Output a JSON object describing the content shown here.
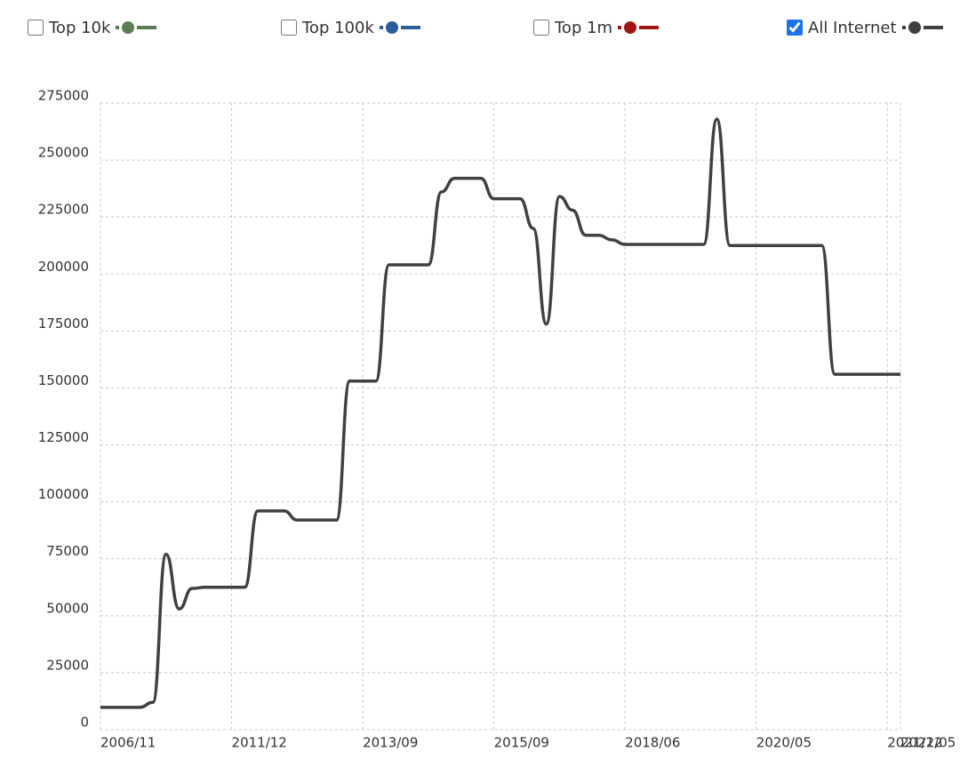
{
  "chart_data": {
    "type": "line",
    "categories": [
      "2006/11",
      null,
      null,
      null,
      null,
      null,
      null,
      null,
      null,
      null,
      "2011/12",
      null,
      null,
      null,
      null,
      null,
      null,
      null,
      null,
      null,
      "2013/09",
      null,
      null,
      null,
      null,
      null,
      null,
      null,
      null,
      null,
      "2015/09",
      null,
      null,
      null,
      null,
      null,
      null,
      null,
      null,
      null,
      "2018/06",
      null,
      null,
      null,
      null,
      null,
      null,
      null,
      null,
      null,
      "2020/05",
      null,
      null,
      null,
      null,
      null,
      null,
      null,
      null,
      null,
      "2021/12",
      "2022/05"
    ],
    "series": [
      {
        "name": "Top 10k",
        "color": "#5a7d54",
        "checked": false
      },
      {
        "name": "Top 100k",
        "color": "#2b5f9a",
        "checked": false
      },
      {
        "name": "Top 1m",
        "color": "#a31515",
        "checked": false
      },
      {
        "name": "All Internet",
        "color": "#404040",
        "checked": true,
        "values": [
          9800,
          9800,
          9800,
          9800,
          12000,
          77000,
          53000,
          62000,
          62500,
          62500,
          62500,
          62500,
          96000,
          96000,
          96000,
          92000,
          92000,
          92000,
          92000,
          153000,
          153000,
          153000,
          204000,
          204000,
          204000,
          204000,
          236000,
          242000,
          242000,
          242000,
          233000,
          233000,
          233000,
          220000,
          178000,
          234000,
          228000,
          217000,
          217000,
          215000,
          213000,
          213000,
          213000,
          213000,
          213000,
          213000,
          213000,
          268000,
          212500,
          212500,
          212500,
          212500,
          212500,
          212500,
          212500,
          212500,
          156000,
          156000,
          156000,
          156000,
          156000,
          156000
        ]
      }
    ],
    "ylim": [
      0,
      275000
    ],
    "yticks": [
      0,
      25000,
      50000,
      75000,
      100000,
      125000,
      150000,
      175000,
      200000,
      225000,
      250000,
      275000
    ],
    "grid": true
  }
}
